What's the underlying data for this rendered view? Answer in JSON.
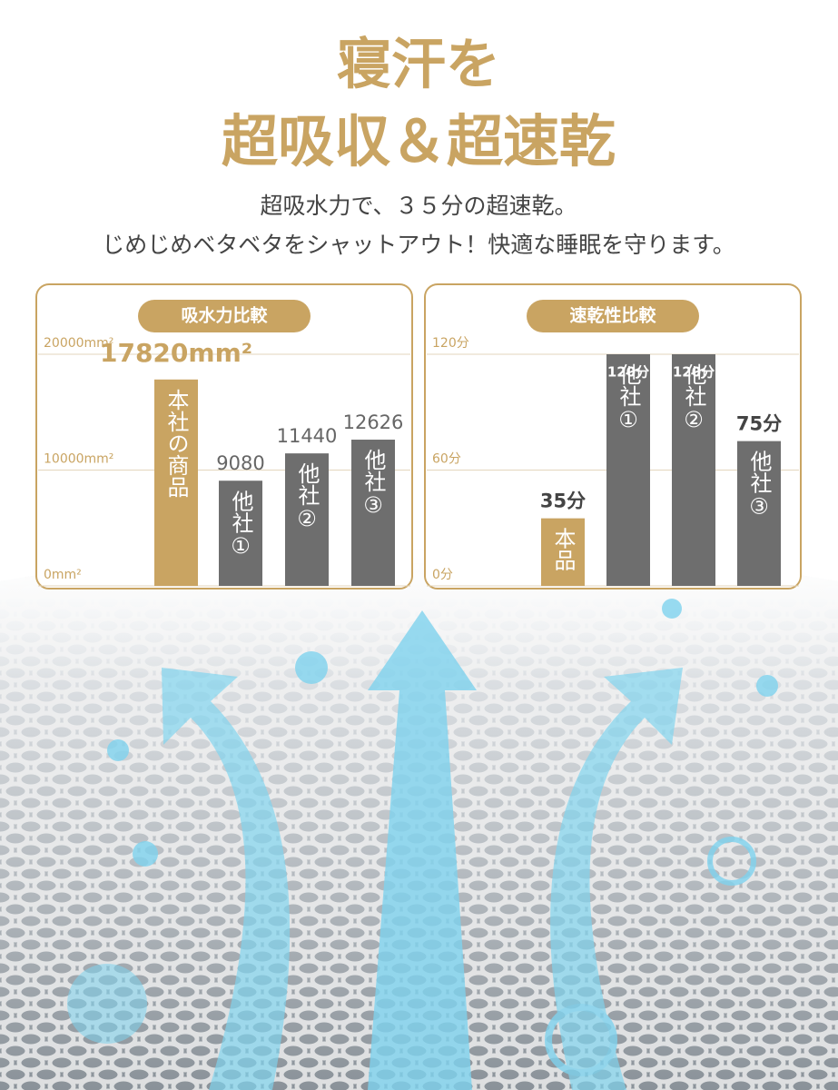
{
  "header": {
    "title_line1": "寝汗を",
    "title_line2": "超吸収＆超速乾",
    "subtitle_line1": "超吸水力で、３５分の超速乾。",
    "subtitle_line2": "じめじめベタベタをシャットアウト！快適な睡眠を守ります。"
  },
  "chart_data": [
    {
      "type": "bar",
      "title": "吸水力比較",
      "categories": [
        "本社の商品",
        "他社①",
        "他社②",
        "他社③"
      ],
      "values": [
        17820,
        9080,
        11440,
        12626
      ],
      "value_labels": [
        "17820mm²",
        "9080",
        "11440",
        "12626"
      ],
      "colors": [
        "#c9a462",
        "#6e6e6e",
        "#6e6e6e",
        "#6e6e6e"
      ],
      "ylim": [
        0,
        20000
      ],
      "yticks": [
        {
          "value": 0,
          "label": "0mm²"
        },
        {
          "value": 10000,
          "label": "10000mm²"
        },
        {
          "value": 20000,
          "label": "20000mm²"
        }
      ],
      "grid": true
    },
    {
      "type": "bar",
      "title": "速乾性比較",
      "categories": [
        "本品",
        "他社①",
        "他社②",
        "他社③"
      ],
      "values": [
        35,
        120,
        120,
        75
      ],
      "value_labels": [
        "35分",
        "120分",
        "120分",
        "75分"
      ],
      "colors": [
        "#c9a462",
        "#6e6e6e",
        "#6e6e6e",
        "#6e6e6e"
      ],
      "ylim": [
        0,
        120
      ],
      "yticks": [
        {
          "value": 0,
          "label": "0分"
        },
        {
          "value": 60,
          "label": "60分"
        },
        {
          "value": 120,
          "label": "120分"
        }
      ],
      "grid": true
    }
  ]
}
